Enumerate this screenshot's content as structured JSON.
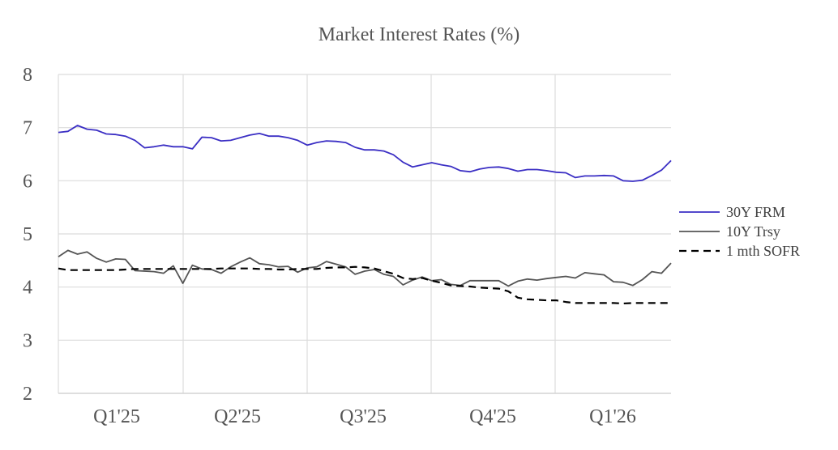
{
  "chart_data": {
    "type": "line",
    "title": "Market Interest Rates (%)",
    "xlabel": "",
    "ylabel": "",
    "ylim": [
      2,
      8
    ],
    "yticks": [
      2,
      3,
      4,
      5,
      6,
      7,
      8
    ],
    "xticks": [
      "Q1'25",
      "Q2'25",
      "Q3'25",
      "Q4'25",
      "Q1'26"
    ],
    "grid": "vertical and horizontal",
    "legend": "right",
    "series": [
      {
        "name": "30Y FRM",
        "color": "#3b2fc4",
        "dash": "solid",
        "values": [
          6.91,
          6.93,
          7.04,
          6.97,
          6.95,
          6.88,
          6.87,
          6.84,
          6.76,
          6.62,
          6.64,
          6.67,
          6.64,
          6.64,
          6.6,
          6.82,
          6.81,
          6.75,
          6.76,
          6.81,
          6.86,
          6.89,
          6.84,
          6.84,
          6.81,
          6.76,
          6.67,
          6.72,
          6.75,
          6.74,
          6.72,
          6.63,
          6.58,
          6.58,
          6.56,
          6.49,
          6.35,
          6.26,
          6.3,
          6.34,
          6.3,
          6.27,
          6.19,
          6.17,
          6.22,
          6.25,
          6.26,
          6.23,
          6.18,
          6.21,
          6.21,
          6.19,
          6.16,
          6.15,
          6.06,
          6.09,
          6.09,
          6.1,
          6.09,
          6.0,
          5.99,
          6.01,
          6.1,
          6.2,
          6.38
        ]
      },
      {
        "name": "10Y Trsy",
        "color": "#555555",
        "dash": "solid",
        "values": [
          4.57,
          4.69,
          4.62,
          4.66,
          4.54,
          4.47,
          4.53,
          4.52,
          4.31,
          4.3,
          4.29,
          4.26,
          4.4,
          4.07,
          4.41,
          4.34,
          4.33,
          4.26,
          4.38,
          4.47,
          4.55,
          4.44,
          4.42,
          4.38,
          4.39,
          4.28,
          4.36,
          4.38,
          4.48,
          4.43,
          4.38,
          4.24,
          4.3,
          4.33,
          4.24,
          4.2,
          4.04,
          4.13,
          4.19,
          4.12,
          4.14,
          4.05,
          4.03,
          4.12,
          4.12,
          4.12,
          4.12,
          4.02,
          4.11,
          4.15,
          4.13,
          4.16,
          4.18,
          4.2,
          4.17,
          4.27,
          4.25,
          4.23,
          4.1,
          4.09,
          4.03,
          4.14,
          4.29,
          4.26,
          4.45
        ]
      },
      {
        "name": "1 mth SOFR",
        "color": "#000000",
        "dash": "dashed",
        "values": [
          4.35,
          4.32,
          4.32,
          4.32,
          4.32,
          4.32,
          4.32,
          4.33,
          4.34,
          4.34,
          4.34,
          4.34,
          4.34,
          4.34,
          4.34,
          4.34,
          4.34,
          4.35,
          4.35,
          4.35,
          4.35,
          4.34,
          4.34,
          4.33,
          4.33,
          4.34,
          4.34,
          4.34,
          4.36,
          4.37,
          4.37,
          4.38,
          4.37,
          4.35,
          4.3,
          4.25,
          4.17,
          4.15,
          4.17,
          4.12,
          4.08,
          4.03,
          4.02,
          4.01,
          3.99,
          3.98,
          3.97,
          3.92,
          3.8,
          3.77,
          3.76,
          3.75,
          3.75,
          3.72,
          3.7,
          3.7,
          3.7,
          3.7,
          3.7,
          3.69,
          3.7,
          3.7,
          3.7,
          3.7,
          3.7
        ]
      }
    ]
  }
}
